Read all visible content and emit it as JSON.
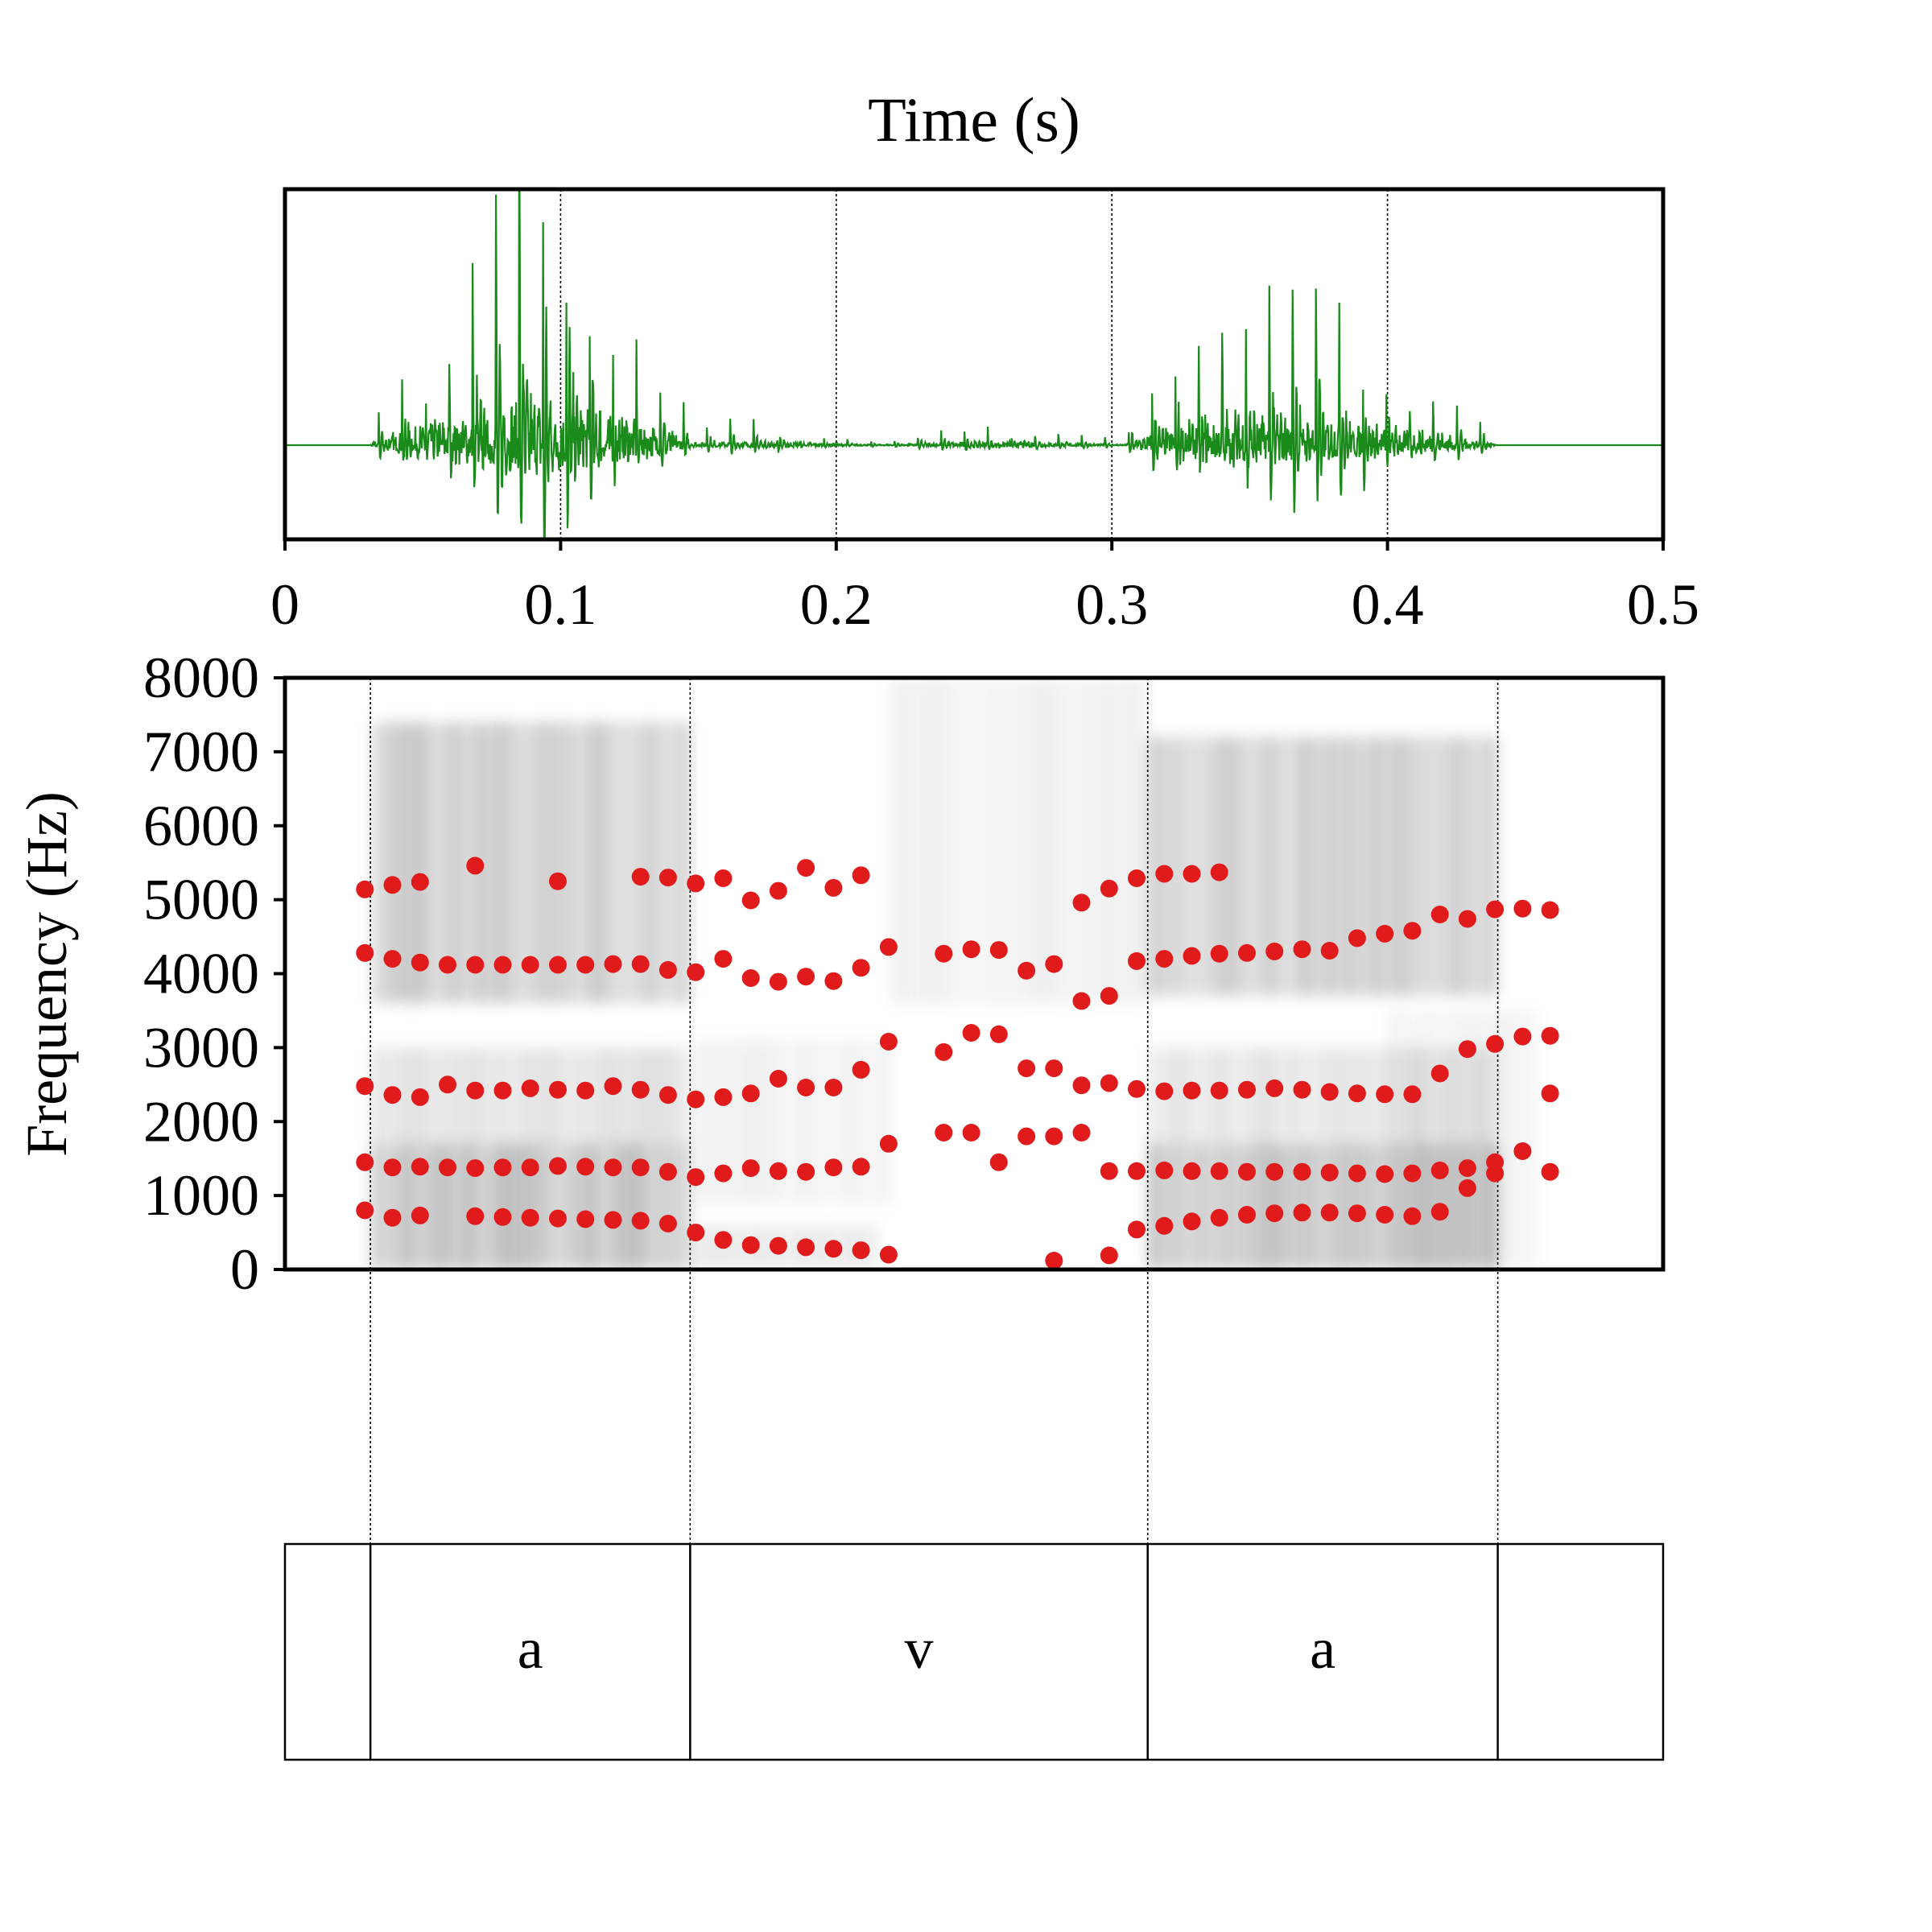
{
  "chart_data": [
    {
      "type": "line",
      "panel": "waveform",
      "title": "Time (s)",
      "xlabel": "Time (s)",
      "ylabel": "",
      "xlim": [
        0,
        0.5
      ],
      "xticks": [
        "0",
        "0.1",
        "0.2",
        "0.3",
        "0.4",
        "0.5"
      ],
      "grid": "vertical dotted lines at 0.1, 0.2, 0.3, 0.4",
      "color": "#1a8a1a",
      "segments": [
        {
          "start": 0.0,
          "end": 0.031,
          "kind": "silence",
          "amp": 0.0
        },
        {
          "start": 0.031,
          "end": 0.148,
          "kind": "vowel",
          "peak_time": 0.095,
          "amp": 1.0
        },
        {
          "start": 0.148,
          "end": 0.305,
          "kind": "fricative",
          "amp": 0.08
        },
        {
          "start": 0.305,
          "end": 0.44,
          "kind": "vowel",
          "peak_time": 0.345,
          "amp": 0.66
        },
        {
          "start": 0.44,
          "end": 0.5,
          "kind": "silence",
          "amp": 0.0
        }
      ]
    },
    {
      "type": "heatmap",
      "panel": "spectrogram",
      "ylabel": "Frequency (Hz)",
      "xlim": [
        0,
        0.5
      ],
      "ylim": [
        0,
        8000
      ],
      "yticks": [
        "0",
        "1000",
        "2000",
        "3000",
        "4000",
        "5000",
        "6000",
        "7000",
        "8000"
      ],
      "colormap": "grayscale",
      "point_color": "#e11b1b",
      "formants": [
        [
          0.029,
          800
        ],
        [
          0.039,
          700
        ],
        [
          0.049,
          730
        ],
        [
          0.069,
          720
        ],
        [
          0.079,
          710
        ],
        [
          0.089,
          700
        ],
        [
          0.099,
          690
        ],
        [
          0.109,
          680
        ],
        [
          0.119,
          670
        ],
        [
          0.129,
          660
        ],
        [
          0.139,
          620
        ],
        [
          0.149,
          500
        ],
        [
          0.159,
          400
        ],
        [
          0.169,
          330
        ],
        [
          0.179,
          320
        ],
        [
          0.189,
          300
        ],
        [
          0.199,
          280
        ],
        [
          0.209,
          260
        ],
        [
          0.219,
          200
        ],
        [
          0.279,
          120
        ],
        [
          0.299,
          190
        ],
        [
          0.309,
          540
        ],
        [
          0.319,
          590
        ],
        [
          0.329,
          650
        ],
        [
          0.339,
          700
        ],
        [
          0.349,
          740
        ],
        [
          0.359,
          760
        ],
        [
          0.369,
          770
        ],
        [
          0.379,
          770
        ],
        [
          0.389,
          760
        ],
        [
          0.399,
          740
        ],
        [
          0.409,
          720
        ],
        [
          0.419,
          780
        ],
        [
          0.429,
          1100
        ],
        [
          0.439,
          1300
        ],
        [
          0.029,
          1450
        ],
        [
          0.039,
          1380
        ],
        [
          0.049,
          1390
        ],
        [
          0.059,
          1380
        ],
        [
          0.069,
          1370
        ],
        [
          0.079,
          1380
        ],
        [
          0.089,
          1380
        ],
        [
          0.099,
          1400
        ],
        [
          0.109,
          1390
        ],
        [
          0.119,
          1380
        ],
        [
          0.129,
          1380
        ],
        [
          0.139,
          1320
        ],
        [
          0.149,
          1250
        ],
        [
          0.159,
          1300
        ],
        [
          0.169,
          1370
        ],
        [
          0.179,
          1330
        ],
        [
          0.189,
          1320
        ],
        [
          0.199,
          1380
        ],
        [
          0.209,
          1390
        ],
        [
          0.219,
          1700
        ],
        [
          0.239,
          1850
        ],
        [
          0.249,
          1850
        ],
        [
          0.259,
          1450
        ],
        [
          0.269,
          1800
        ],
        [
          0.279,
          1800
        ],
        [
          0.289,
          1850
        ],
        [
          0.299,
          1330
        ],
        [
          0.309,
          1330
        ],
        [
          0.319,
          1340
        ],
        [
          0.329,
          1330
        ],
        [
          0.339,
          1330
        ],
        [
          0.349,
          1320
        ],
        [
          0.359,
          1320
        ],
        [
          0.369,
          1320
        ],
        [
          0.379,
          1310
        ],
        [
          0.389,
          1300
        ],
        [
          0.399,
          1290
        ],
        [
          0.409,
          1300
        ],
        [
          0.419,
          1340
        ],
        [
          0.429,
          1370
        ],
        [
          0.439,
          1450
        ],
        [
          0.449,
          1600
        ],
        [
          0.459,
          1320
        ],
        [
          0.029,
          2480
        ],
        [
          0.039,
          2360
        ],
        [
          0.049,
          2330
        ],
        [
          0.059,
          2500
        ],
        [
          0.069,
          2420
        ],
        [
          0.079,
          2420
        ],
        [
          0.089,
          2450
        ],
        [
          0.099,
          2430
        ],
        [
          0.109,
          2420
        ],
        [
          0.119,
          2480
        ],
        [
          0.129,
          2430
        ],
        [
          0.139,
          2360
        ],
        [
          0.149,
          2300
        ],
        [
          0.159,
          2330
        ],
        [
          0.169,
          2380
        ],
        [
          0.179,
          2580
        ],
        [
          0.189,
          2460
        ],
        [
          0.199,
          2460
        ],
        [
          0.209,
          2700
        ],
        [
          0.219,
          3080
        ],
        [
          0.239,
          2940
        ],
        [
          0.249,
          3200
        ],
        [
          0.259,
          3180
        ],
        [
          0.269,
          2720
        ],
        [
          0.279,
          2720
        ],
        [
          0.289,
          2490
        ],
        [
          0.299,
          2520
        ],
        [
          0.309,
          2440
        ],
        [
          0.319,
          2410
        ],
        [
          0.329,
          2420
        ],
        [
          0.339,
          2420
        ],
        [
          0.349,
          2430
        ],
        [
          0.359,
          2450
        ],
        [
          0.369,
          2430
        ],
        [
          0.379,
          2400
        ],
        [
          0.389,
          2380
        ],
        [
          0.399,
          2370
        ],
        [
          0.409,
          2370
        ],
        [
          0.419,
          2650
        ],
        [
          0.429,
          2980
        ],
        [
          0.439,
          3050
        ],
        [
          0.449,
          3150
        ],
        [
          0.459,
          3160
        ],
        [
          0.459,
          2380
        ],
        [
          0.029,
          4280
        ],
        [
          0.039,
          4200
        ],
        [
          0.049,
          4150
        ],
        [
          0.059,
          4120
        ],
        [
          0.069,
          4120
        ],
        [
          0.079,
          4120
        ],
        [
          0.089,
          4120
        ],
        [
          0.099,
          4120
        ],
        [
          0.109,
          4120
        ],
        [
          0.119,
          4130
        ],
        [
          0.129,
          4130
        ],
        [
          0.139,
          4050
        ],
        [
          0.149,
          4020
        ],
        [
          0.159,
          4200
        ],
        [
          0.169,
          3940
        ],
        [
          0.179,
          3890
        ],
        [
          0.189,
          3960
        ],
        [
          0.199,
          3900
        ],
        [
          0.209,
          4080
        ],
        [
          0.219,
          4360
        ],
        [
          0.239,
          4270
        ],
        [
          0.249,
          4330
        ],
        [
          0.259,
          4320
        ],
        [
          0.269,
          4040
        ],
        [
          0.279,
          4130
        ],
        [
          0.289,
          3630
        ],
        [
          0.299,
          3700
        ],
        [
          0.309,
          4170
        ],
        [
          0.319,
          4200
        ],
        [
          0.329,
          4240
        ],
        [
          0.339,
          4270
        ],
        [
          0.349,
          4280
        ],
        [
          0.359,
          4300
        ],
        [
          0.369,
          4330
        ],
        [
          0.379,
          4310
        ],
        [
          0.389,
          4480
        ],
        [
          0.399,
          4540
        ],
        [
          0.409,
          4580
        ],
        [
          0.419,
          4800
        ],
        [
          0.429,
          4740
        ],
        [
          0.439,
          4870
        ],
        [
          0.449,
          4880
        ],
        [
          0.459,
          4860
        ],
        [
          0.029,
          5140
        ],
        [
          0.039,
          5200
        ],
        [
          0.049,
          5240
        ],
        [
          0.069,
          5460
        ],
        [
          0.099,
          5250
        ],
        [
          0.129,
          5310
        ],
        [
          0.139,
          5300
        ],
        [
          0.149,
          5220
        ],
        [
          0.159,
          5290
        ],
        [
          0.169,
          4990
        ],
        [
          0.179,
          5120
        ],
        [
          0.189,
          5430
        ],
        [
          0.199,
          5160
        ],
        [
          0.209,
          5330
        ],
        [
          0.289,
          4960
        ],
        [
          0.299,
          5150
        ],
        [
          0.309,
          5290
        ],
        [
          0.319,
          5350
        ],
        [
          0.329,
          5350
        ],
        [
          0.339,
          5370
        ]
      ]
    },
    {
      "type": "table",
      "panel": "textgrid",
      "intervals": [
        {
          "start": 0.0,
          "end": 0.031,
          "label": ""
        },
        {
          "start": 0.031,
          "end": 0.147,
          "label": "a"
        },
        {
          "start": 0.147,
          "end": 0.313,
          "label": "v"
        },
        {
          "start": 0.313,
          "end": 0.44,
          "label": "a"
        },
        {
          "start": 0.44,
          "end": 0.5,
          "label": ""
        }
      ]
    }
  ]
}
